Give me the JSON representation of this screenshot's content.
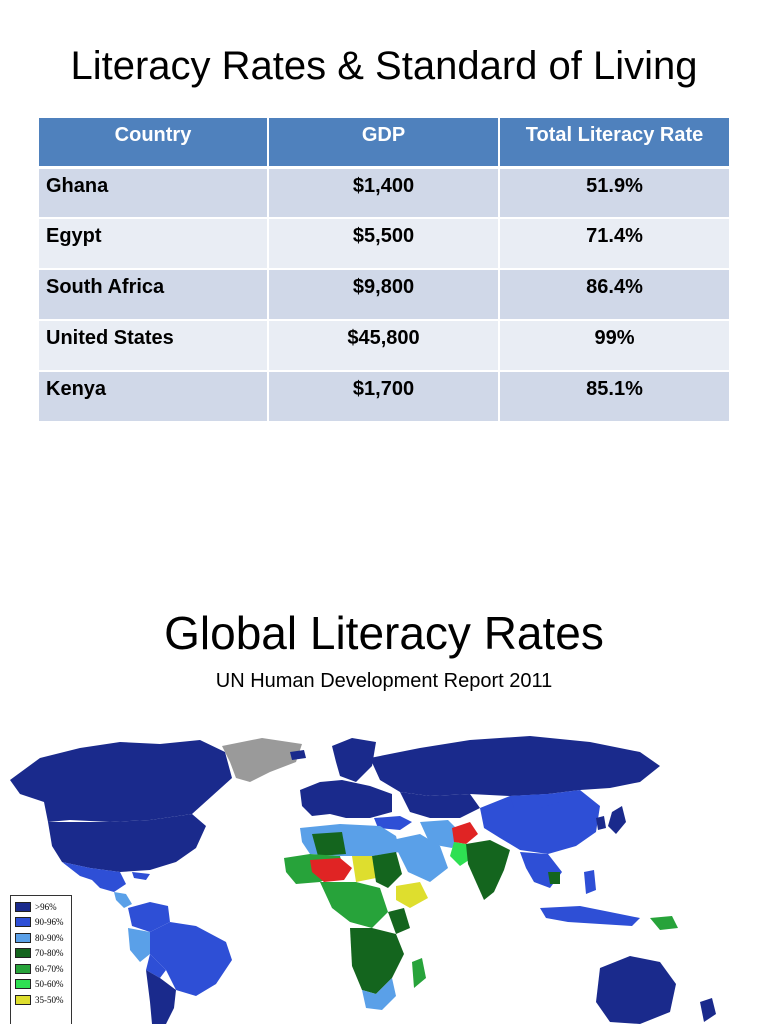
{
  "slide1": {
    "title": "Literacy Rates & Standard of Living",
    "table": {
      "headers": [
        "Country",
        "GDP",
        "Total Literacy Rate"
      ],
      "rows": [
        [
          "Ghana",
          "$1,400",
          "51.9%"
        ],
        [
          "Egypt",
          "$5,500",
          "71.4%"
        ],
        [
          "South Africa",
          "$9,800",
          "86.4%"
        ],
        [
          "United States",
          "$45,800",
          "99%"
        ],
        [
          "Kenya",
          "$1,700",
          "85.1%"
        ]
      ]
    }
  },
  "slide2": {
    "title": "Global Literacy Rates",
    "subtitle": "UN Human Development Report 2011",
    "legend": [
      {
        "label": ">96%",
        "color": "#1a2a8c"
      },
      {
        "label": "90-96%",
        "color": "#2e4fd6"
      },
      {
        "label": "80-90%",
        "color": "#5aa0e8"
      },
      {
        "label": "70-80%",
        "color": "#14651e"
      },
      {
        "label": "60-70%",
        "color": "#27a33a"
      },
      {
        "label": "50-60%",
        "color": "#2ee052"
      },
      {
        "label": "35-50%",
        "color": "#dede2e"
      }
    ],
    "colors": {
      "table_header": "#4f81bd",
      "row_dark": "#d0d8e8",
      "row_light": "#e9edf4",
      "no_data": "#9a9a9a",
      "below_35": "#e02424"
    }
  }
}
